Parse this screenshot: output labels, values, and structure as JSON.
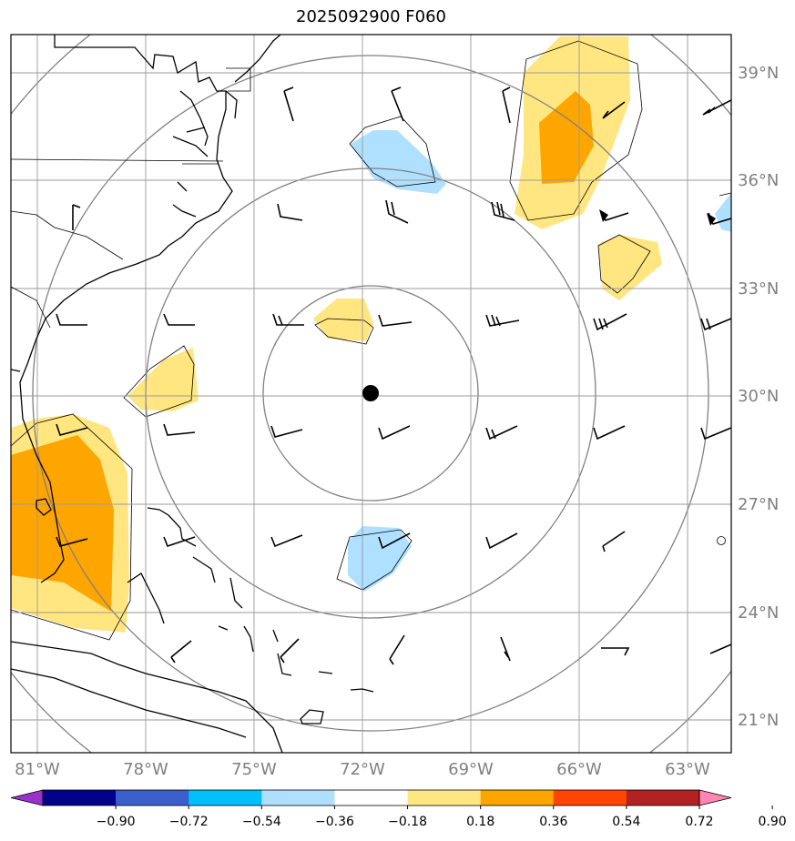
{
  "title": "2025092900 F060",
  "lat_labels": [
    "39°N",
    "36°N",
    "33°N",
    "30°N",
    "27°N",
    "24°N",
    "21°N"
  ],
  "lon_labels": [
    "81°W",
    "78°W",
    "75°W",
    "72°W",
    "69°W",
    "66°W",
    "63°W"
  ],
  "colorbar": {
    "ticks": [
      "−0.90",
      "−0.72",
      "−0.54",
      "−0.36",
      "−0.18",
      "0.18",
      "0.36",
      "0.54",
      "0.72",
      "0.90"
    ],
    "colors": [
      "#9932cc",
      "#00008b",
      "#3a5fcd",
      "#00bfff",
      "#b0e0ff",
      "#ffffff",
      "#ffe680",
      "#ffa500",
      "#ff4500",
      "#b22222",
      "#ff85b4"
    ]
  },
  "center_marker": "storm-center-dot",
  "colors": {
    "frame": "#000000",
    "grid": "#9a9a9a",
    "range_ring": "#808080",
    "axis_label": "#808080"
  }
}
